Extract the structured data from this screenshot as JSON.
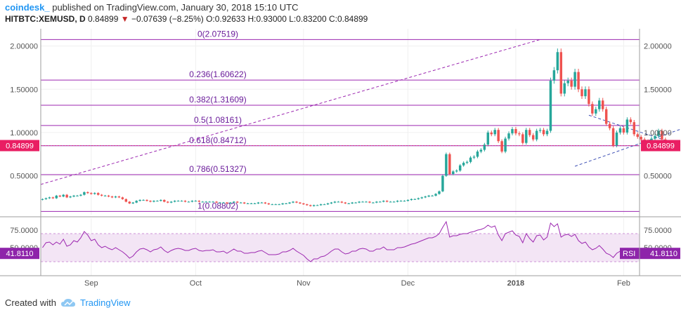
{
  "header": {
    "brand": "coindesk_",
    "published": "published on TradingView.com, January 30, 2018 15:10 UTC",
    "symbol": "HITBTC:XEMUSD, D",
    "last": "0.84899",
    "change_arrow": "▼",
    "change": "−0.07639 (−8.25%)",
    "ohlc": {
      "o_label": "O:",
      "o": "0.92633",
      "h_label": "H:",
      "h": "0.93000",
      "l_label": "L:",
      "l": "0.83200",
      "c_label": "C:",
      "c": "0.84899"
    }
  },
  "footer": {
    "created_with": "Created with",
    "tradingview": "TradingView"
  },
  "colors": {
    "up": "#26a69a",
    "down": "#ef5350",
    "fib": "#9c27b0",
    "trend": "#3f51b5",
    "rsi": "#9c27b0",
    "price_tag": "#e91e63",
    "rsi_tag": "#8e24aa"
  },
  "chart_data": [
    {
      "type": "candlestick",
      "title": "HITBTC:XEMUSD, D",
      "ylim": [
        0.05,
        2.2
      ],
      "y_ticks": [
        "2.00000",
        "1.50000",
        "1.00000",
        "0.50000"
      ],
      "y_tick_values": [
        2.0,
        1.5,
        1.0,
        0.5
      ],
      "x_ticks": [
        "Sep",
        "Oct",
        "Nov",
        "Dec",
        "2018",
        "Feb"
      ],
      "x_tick_dates": [
        "2017-09-01",
        "2017-10-01",
        "2017-11-01",
        "2017-12-01",
        "2018-01-01",
        "2018-02-01"
      ],
      "start_date": "2017-08-18",
      "end_date": "2018-01-30",
      "current_price": 0.84899,
      "current_price_label": "0.84899",
      "fib_levels": [
        {
          "label": "0(2.07519)",
          "value": 2.07519
        },
        {
          "label": "0.236(1.60622)",
          "value": 1.60622
        },
        {
          "label": "0.382(1.31609)",
          "value": 1.31609
        },
        {
          "label": "0.5(1.08161)",
          "value": 1.08161
        },
        {
          "label": "0.618(0.84712)",
          "value": 0.84712
        },
        {
          "label": "0.786(0.51327)",
          "value": 0.51327
        },
        {
          "label": "1(0.08802)",
          "value": 0.08802
        }
      ],
      "closes": [
        0.23,
        0.24,
        0.25,
        0.24,
        0.27,
        0.26,
        0.28,
        0.25,
        0.26,
        0.27,
        0.27,
        0.28,
        0.31,
        0.3,
        0.29,
        0.3,
        0.28,
        0.27,
        0.27,
        0.26,
        0.25,
        0.26,
        0.25,
        0.23,
        0.2,
        0.18,
        0.19,
        0.21,
        0.22,
        0.22,
        0.21,
        0.2,
        0.21,
        0.21,
        0.22,
        0.2,
        0.19,
        0.2,
        0.21,
        0.21,
        0.21,
        0.2,
        0.2,
        0.21,
        0.21,
        0.2,
        0.2,
        0.2,
        0.2,
        0.2,
        0.19,
        0.19,
        0.19,
        0.18,
        0.19,
        0.2,
        0.19,
        0.19,
        0.18,
        0.18,
        0.18,
        0.18,
        0.19,
        0.19,
        0.18,
        0.17,
        0.17,
        0.17,
        0.17,
        0.18,
        0.18,
        0.19,
        0.2,
        0.19,
        0.18,
        0.17,
        0.16,
        0.15,
        0.16,
        0.16,
        0.17,
        0.17,
        0.18,
        0.19,
        0.2,
        0.2,
        0.19,
        0.18,
        0.18,
        0.19,
        0.19,
        0.2,
        0.2,
        0.2,
        0.19,
        0.19,
        0.2,
        0.2,
        0.21,
        0.2,
        0.2,
        0.2,
        0.21,
        0.21,
        0.21,
        0.22,
        0.23,
        0.23,
        0.24,
        0.25,
        0.26,
        0.27,
        0.27,
        0.29,
        0.32,
        0.5,
        0.75,
        0.52,
        0.55,
        0.56,
        0.62,
        0.65,
        0.66,
        0.71,
        0.72,
        0.78,
        0.8,
        0.86,
        1.0,
        0.98,
        1.03,
        0.9,
        0.78,
        0.93,
        0.99,
        1.04,
        0.99,
        0.98,
        0.88,
        1.03,
        0.97,
        0.92,
        1.02,
        1.03,
        0.98,
        1.02,
        1.6,
        1.72,
        1.93,
        1.45,
        1.57,
        1.6,
        1.53,
        1.7,
        1.5,
        1.42,
        1.5,
        1.33,
        1.22,
        1.27,
        1.37,
        1.27,
        1.1,
        1.05,
        0.85,
        1.0,
        1.05,
        1.0,
        1.15,
        1.12,
        0.98,
        0.95,
        0.92,
        0.9,
        0.88,
        0.93,
        0.96,
        1.02,
        0.92,
        0.849
      ],
      "rsi": {
        "label": "RSI",
        "value_label": "41.8110",
        "ylim": [
          10,
          92
        ],
        "y_ticks": [
          "75.0000",
          "50.0000"
        ],
        "y_tick_values": [
          75,
          50
        ],
        "band": [
          30,
          70
        ],
        "values": [
          50,
          57,
          58,
          54,
          58,
          55,
          62,
          52,
          54,
          60,
          58,
          64,
          73,
          68,
          60,
          62,
          54,
          50,
          52,
          49,
          47,
          50,
          47,
          44,
          40,
          35,
          38,
          44,
          48,
          49,
          47,
          44,
          47,
          48,
          51,
          46,
          43,
          46,
          48,
          49,
          48,
          46,
          46,
          48,
          49,
          46,
          45,
          46,
          46,
          47,
          44,
          44,
          45,
          42,
          45,
          48,
          45,
          45,
          42,
          42,
          43,
          43,
          45,
          46,
          43,
          40,
          40,
          40,
          41,
          44,
          44,
          46,
          49,
          45,
          42,
          39,
          34,
          30,
          34,
          34,
          37,
          38,
          41,
          45,
          48,
          48,
          44,
          41,
          42,
          45,
          45,
          48,
          49,
          48,
          45,
          45,
          48,
          48,
          51,
          47,
          47,
          47,
          50,
          50,
          51,
          53,
          55,
          56,
          58,
          60,
          62,
          64,
          64,
          66,
          70,
          79,
          87,
          65,
          67,
          67,
          69,
          70,
          70,
          72,
          73,
          75,
          76,
          78,
          82,
          79,
          81,
          68,
          60,
          70,
          72,
          74,
          68,
          66,
          57,
          70,
          63,
          58,
          67,
          68,
          61,
          65,
          85,
          80,
          84,
          65,
          68,
          69,
          66,
          69,
          60,
          56,
          58,
          51,
          47,
          49,
          53,
          48,
          42,
          40,
          36,
          42,
          45,
          43,
          49,
          47,
          41,
          40,
          39,
          38,
          37,
          40,
          42,
          45,
          39,
          41.811
        ]
      }
    }
  ]
}
